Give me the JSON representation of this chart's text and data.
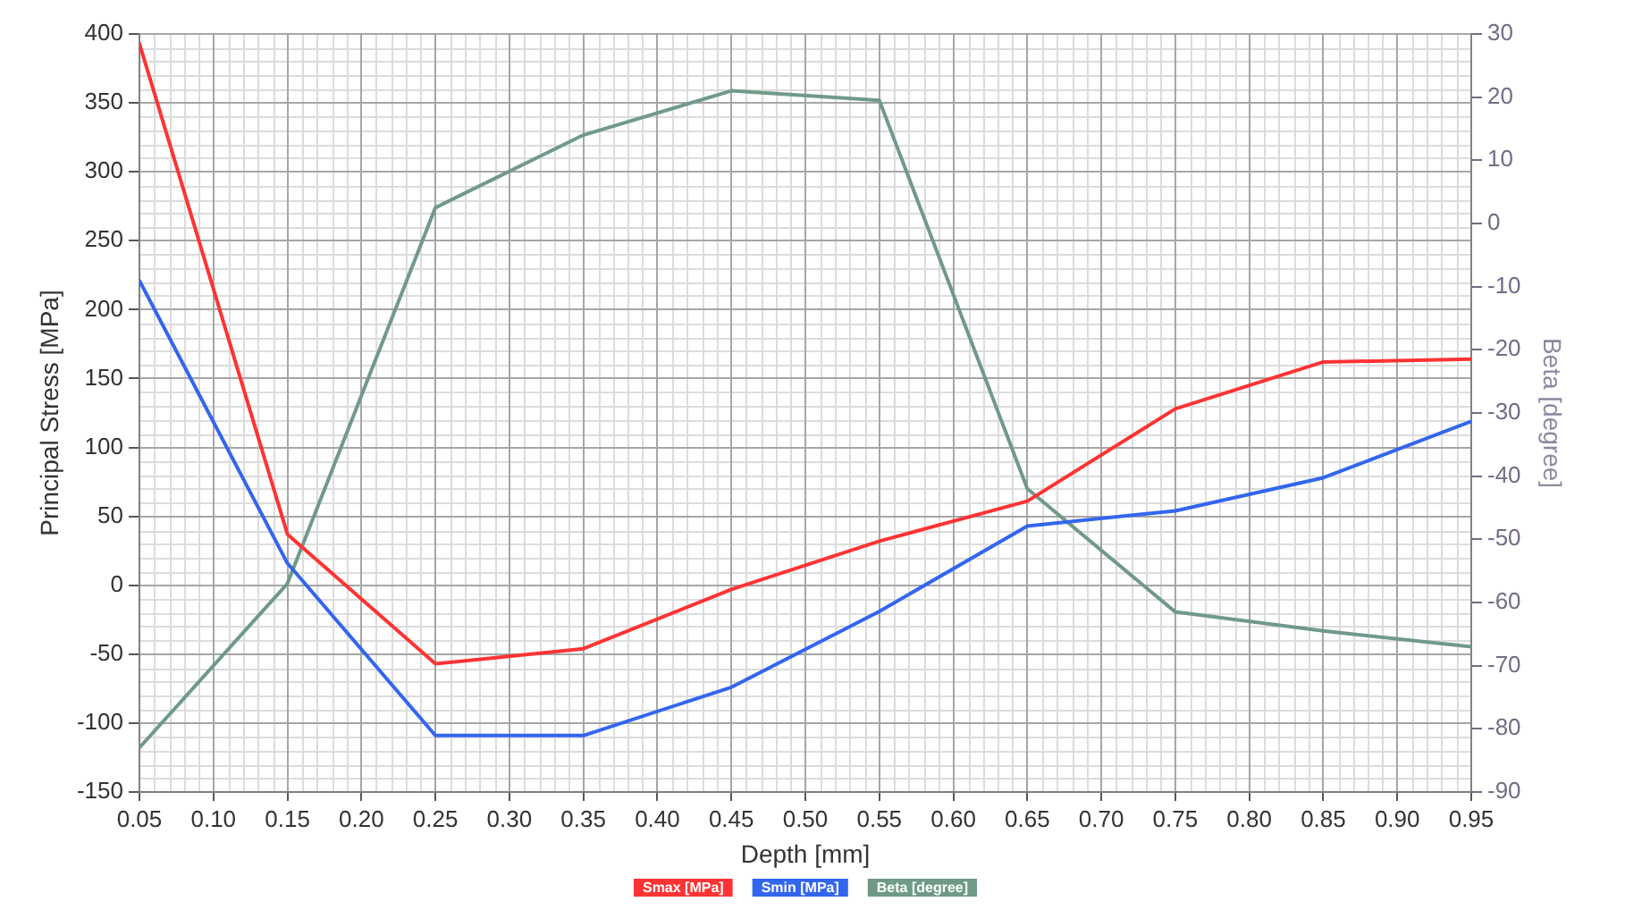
{
  "chart_data": {
    "type": "line",
    "xlabel": "Depth [mm]",
    "ylabel": "Principal Stress [MPa]",
    "y2label": "Beta [degree]",
    "x": [
      0.05,
      0.15,
      0.25,
      0.35,
      0.45,
      0.55,
      0.65,
      0.75,
      0.85,
      0.95
    ],
    "series": [
      {
        "name": "Smax [MPa]",
        "color": "#ff3333",
        "values": [
          393,
          37,
          -57,
          -46,
          -3,
          32,
          61,
          128,
          162,
          164
        ]
      },
      {
        "name": "Smin [MPa]",
        "color": "#3366ee",
        "values": [
          221,
          16,
          -109,
          -109,
          -74,
          -19,
          43,
          54,
          78,
          119
        ]
      },
      {
        "name": "Beta [degree]",
        "color": "#6f9a87",
        "axis": "y2",
        "values": [
          -83,
          -57,
          2.5,
          14,
          21,
          19.5,
          -42,
          -61.5,
          -64.5,
          -67
        ]
      }
    ],
    "xlim": [
      0.05,
      0.95
    ],
    "xticks": [
      0.05,
      {
        "value": 0.1,
        "label": "0.10"
      },
      0.15,
      {
        "value": 0.2,
        "label": "0.20"
      },
      0.25,
      {
        "value": 0.3,
        "label": "0.30"
      },
      0.35,
      {
        "value": 0.4,
        "label": "0.40"
      },
      0.45,
      {
        "value": 0.5,
        "label": "0.50"
      },
      0.55,
      {
        "value": 0.6,
        "label": "0.60"
      },
      0.65,
      {
        "value": 0.7,
        "label": "0.70"
      },
      0.75,
      {
        "value": 0.8,
        "label": "0.80"
      },
      0.85,
      {
        "value": 0.9,
        "label": "0.90"
      },
      0.95
    ],
    "ylim": [
      -150,
      400
    ],
    "yticks": [
      -150,
      -100,
      -50,
      0,
      50,
      100,
      150,
      200,
      250,
      300,
      350,
      400
    ],
    "y2lim": [
      -90,
      30
    ],
    "y2ticks": [
      -90,
      -80,
      -70,
      -60,
      -50,
      -40,
      -30,
      -20,
      -10,
      0,
      10,
      20,
      30
    ],
    "grid": true,
    "legend": "bottom"
  }
}
